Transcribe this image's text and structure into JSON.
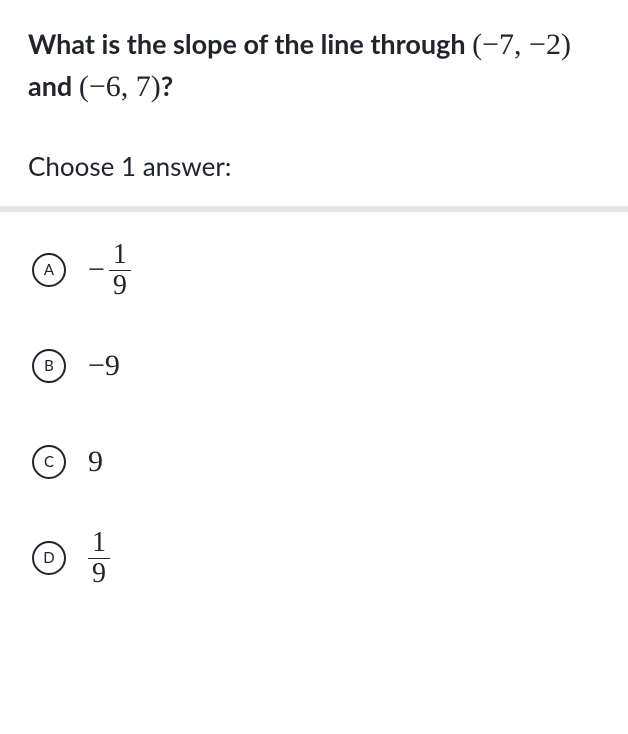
{
  "question": {
    "stem_prefix": "What is the slope of the line through ",
    "point1": "(−7, −2)",
    "stem_mid": " and ",
    "point2": "(−6, 7)",
    "stem_suffix": "?"
  },
  "instruction": "Choose 1 answer:",
  "choices": [
    {
      "letter": "A",
      "type": "neg_fraction",
      "numerator": "1",
      "denominator": "9"
    },
    {
      "letter": "B",
      "type": "plain",
      "value": "−9"
    },
    {
      "letter": "C",
      "type": "plain",
      "value": "9"
    },
    {
      "letter": "D",
      "type": "fraction",
      "numerator": "1",
      "denominator": "9"
    }
  ],
  "colors": {
    "text": "#21242c",
    "divider": "#e3e5e8",
    "background": "#ffffff"
  }
}
